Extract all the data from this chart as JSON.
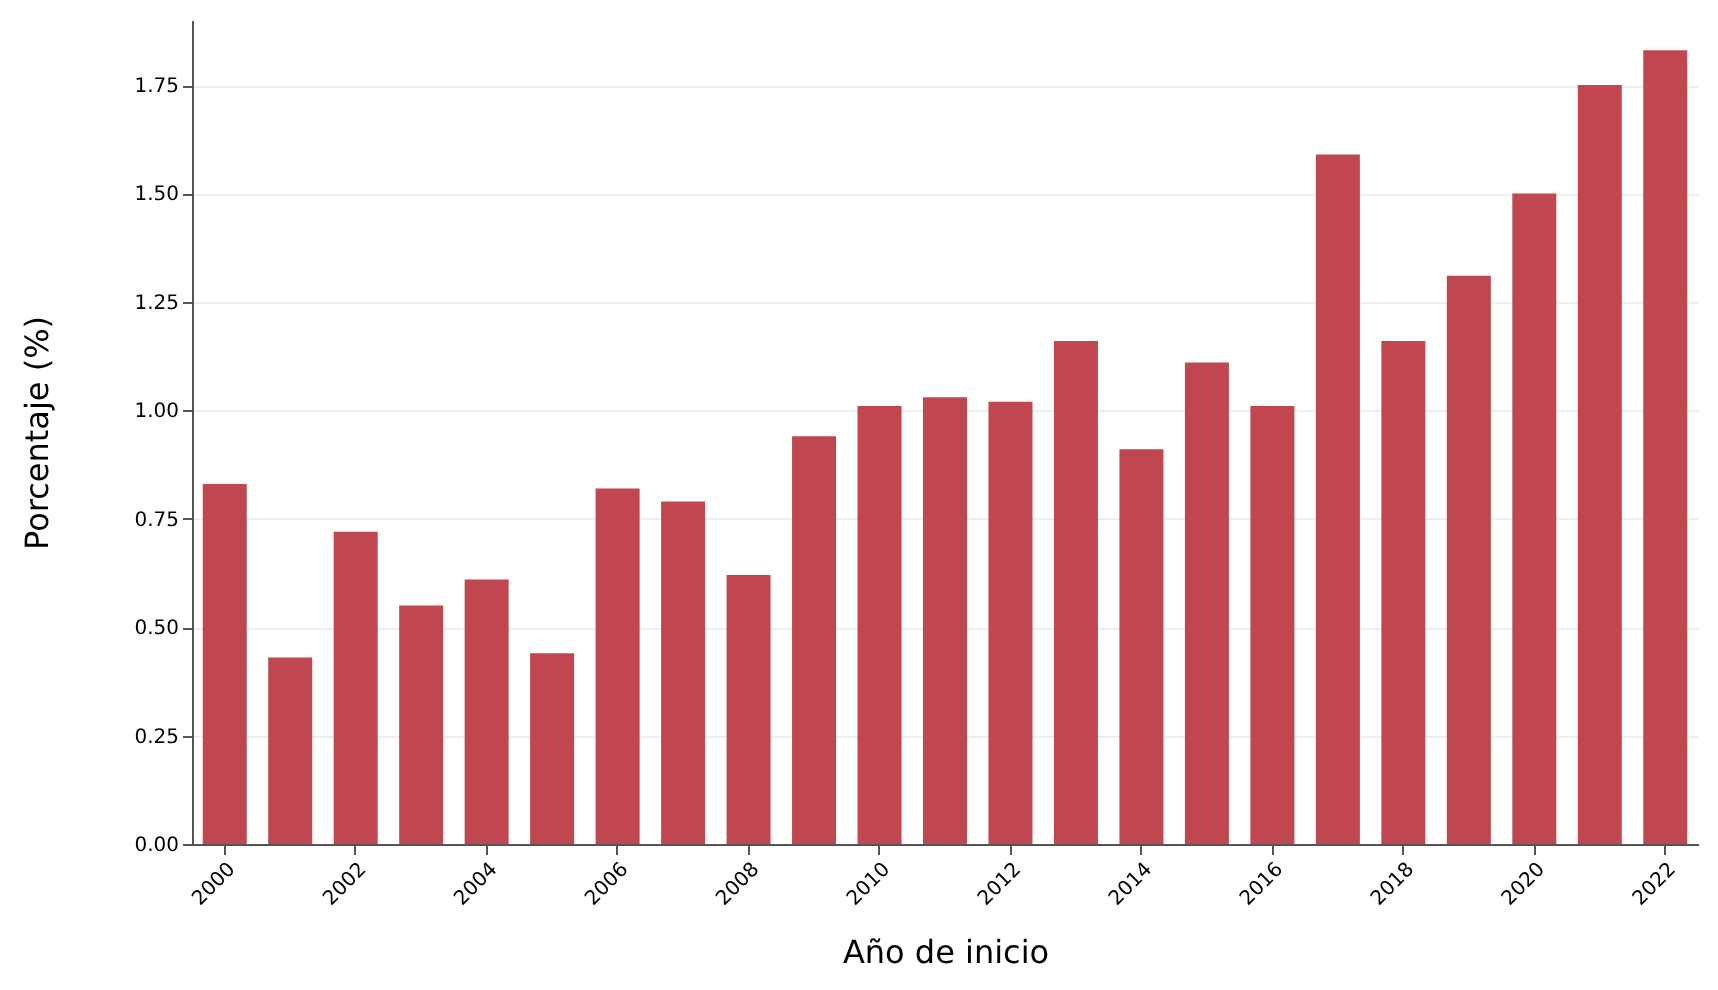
{
  "chart_data": {
    "type": "bar",
    "xlabel": "Año de inicio",
    "ylabel": "Porcentaje (%)",
    "categories": [
      "2000",
      null,
      "2002",
      null,
      "2004",
      null,
      "2006",
      null,
      "2008",
      null,
      "2010",
      null,
      "2012",
      null,
      "2014",
      null,
      "2016",
      null,
      "2018",
      null,
      "2020",
      null,
      "2022"
    ],
    "values": [
      0.83,
      0.43,
      0.72,
      0.55,
      0.61,
      0.44,
      0.82,
      0.79,
      0.62,
      0.94,
      1.01,
      1.03,
      1.02,
      1.16,
      0.91,
      1.11,
      1.01,
      1.59,
      1.16,
      1.31,
      1.5,
      1.75,
      1.83
    ],
    "color": "#c0474f",
    "ylim": [
      0,
      1.9
    ],
    "yticks": [
      {
        "value": 0,
        "label": "0.00"
      },
      {
        "value": 0.25,
        "label": "0.25"
      },
      {
        "value": 0.5,
        "label": "0.50"
      },
      {
        "value": 0.75,
        "label": "0.75"
      },
      {
        "value": 1,
        "label": "1.00"
      },
      {
        "value": 1.25,
        "label": "1.25"
      },
      {
        "value": 1.5,
        "label": "1.50"
      },
      {
        "value": 1.75,
        "label": "1.75"
      }
    ],
    "grid": "y"
  }
}
